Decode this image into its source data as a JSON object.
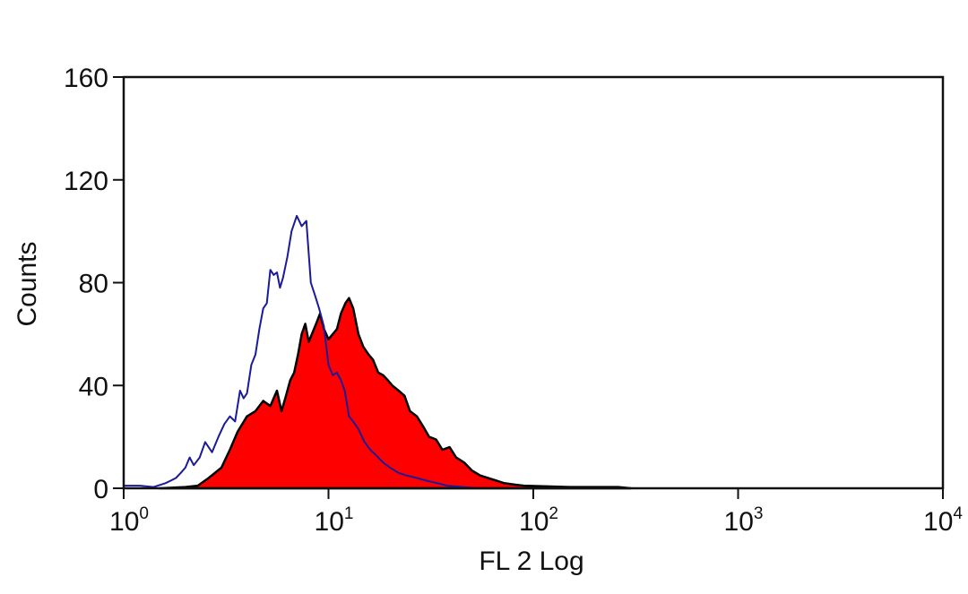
{
  "chart_data": {
    "type": "area",
    "xlabel": "FL 2 Log",
    "ylabel": "Counts",
    "xscale": "log",
    "xlim": [
      1,
      10000
    ],
    "ylim": [
      0,
      160
    ],
    "grid": false,
    "x_ticks": [
      {
        "value": 1,
        "base": "10",
        "exp": "0"
      },
      {
        "value": 10,
        "base": "10",
        "exp": "1"
      },
      {
        "value": 100,
        "base": "10",
        "exp": "2"
      },
      {
        "value": 1000,
        "base": "10",
        "exp": "3"
      },
      {
        "value": 10000,
        "base": "10",
        "exp": "4"
      }
    ],
    "y_ticks": [
      {
        "value": 0,
        "label": "0"
      },
      {
        "value": 40,
        "label": "40"
      },
      {
        "value": 80,
        "label": "80"
      },
      {
        "value": 120,
        "label": "120"
      },
      {
        "value": 160,
        "label": "160"
      }
    ],
    "series": [
      {
        "style": "filled",
        "color": "#ff0000",
        "edge_color": "#000000",
        "x": [
          1.5,
          2.0,
          2.3,
          2.6,
          3.0,
          3.3,
          3.6,
          4.0,
          4.4,
          4.8,
          5.2,
          5.6,
          5.9,
          6.2,
          6.5,
          6.8,
          7.1,
          7.4,
          7.7,
          8.0,
          8.3,
          8.7,
          9.1,
          9.5,
          10.0,
          10.5,
          11.0,
          11.5,
          12.1,
          12.6,
          13.2,
          14.0,
          14.8,
          15.7,
          16.5,
          17.5,
          18.5,
          19.5,
          20.5,
          22.0,
          23.5,
          25.0,
          27.0,
          29.0,
          31.0,
          33.5,
          36.0,
          39.0,
          42.0,
          46.0,
          50.0,
          55.0,
          60.0,
          66.0,
          72.0,
          80.0,
          90.0,
          150.0,
          260.0,
          300.0
        ],
        "y": [
          0,
          0.5,
          1,
          4,
          8,
          15,
          22,
          28,
          30,
          34,
          32,
          38,
          30,
          36,
          42,
          45,
          52,
          60,
          64,
          57,
          60,
          64,
          68,
          62,
          58,
          60,
          62,
          68,
          72,
          74,
          70,
          60,
          55,
          52,
          50,
          45,
          44,
          42,
          40,
          38,
          36,
          30,
          28,
          24,
          20,
          19,
          15,
          16,
          12,
          10,
          7,
          5,
          4,
          3,
          2,
          1.5,
          1,
          0.5,
          0.5,
          0
        ]
      },
      {
        "style": "line",
        "color": "#1a1a9a",
        "x": [
          1.0,
          1.2,
          1.4,
          1.6,
          1.7,
          1.8,
          1.9,
          2.0,
          2.1,
          2.2,
          2.35,
          2.5,
          2.7,
          2.9,
          3.1,
          3.3,
          3.5,
          3.7,
          3.85,
          4.0,
          4.2,
          4.4,
          4.6,
          4.8,
          5.0,
          5.2,
          5.4,
          5.6,
          5.8,
          6.0,
          6.3,
          6.6,
          7.0,
          7.4,
          7.8,
          8.2,
          8.6,
          9.0,
          9.5,
          10.0,
          10.5,
          11.0,
          11.5,
          12.0,
          12.6,
          13.2,
          14.0,
          15.0,
          16.0,
          17.0,
          18.5,
          20.0,
          22.0,
          24.0,
          27.0,
          30.0,
          34.0,
          38.0,
          45.0,
          55.0
        ],
        "y": [
          1,
          1,
          0.5,
          2,
          3,
          4,
          6,
          8,
          12,
          9,
          12,
          18,
          14,
          20,
          25,
          28,
          26,
          38,
          35,
          37,
          48,
          52,
          62,
          70,
          72,
          85,
          83,
          84,
          78,
          82,
          90,
          100,
          106,
          102,
          104,
          80,
          75,
          70,
          63,
          48,
          44,
          45,
          42,
          38,
          28,
          26,
          23,
          18,
          15,
          13,
          10,
          8,
          6,
          5,
          4,
          3,
          2,
          1,
          0.5,
          0
        ]
      }
    ]
  }
}
